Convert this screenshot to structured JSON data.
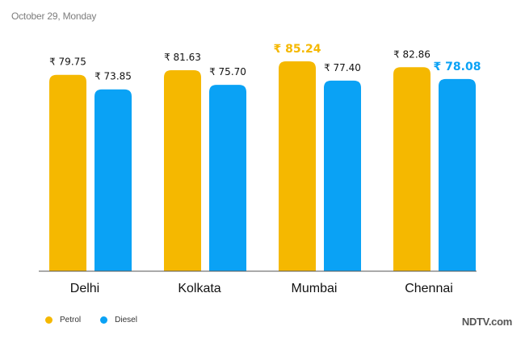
{
  "header": {
    "date": "October 29, Monday"
  },
  "colors": {
    "petrol": "#f5b800",
    "diesel": "#0aa2f5",
    "baseline": "#555555",
    "label": "#111111"
  },
  "legend": {
    "petrol": "Petrol",
    "diesel": "Diesel"
  },
  "brand": "NDTV.com",
  "chart_data": {
    "type": "bar",
    "categories": [
      "Delhi",
      "Kolkata",
      "Mumbai",
      "Chennai"
    ],
    "series": [
      {
        "name": "Petrol",
        "values": [
          79.75,
          81.63,
          85.24,
          82.86
        ],
        "labels": [
          "₹ 79.75",
          "₹ 81.63",
          "₹ 85.24",
          "₹ 82.86"
        ],
        "highlight": [
          false,
          false,
          true,
          false
        ]
      },
      {
        "name": "Diesel",
        "values": [
          73.85,
          75.7,
          77.4,
          78.08
        ],
        "labels": [
          "₹ 73.85",
          "₹ 75.70",
          "₹ 77.40",
          "₹ 78.08"
        ],
        "highlight": [
          false,
          false,
          false,
          true
        ]
      }
    ],
    "legend_position": "bottom-left",
    "grid": false
  }
}
